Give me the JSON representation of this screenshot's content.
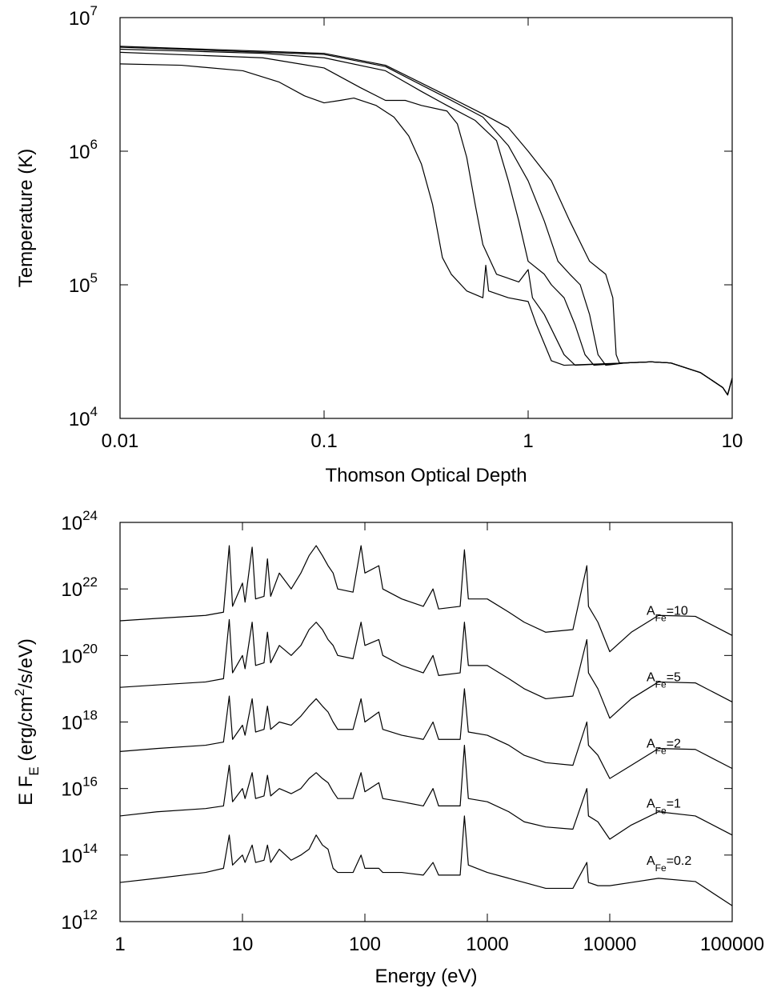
{
  "chart_data": [
    {
      "type": "line",
      "xlabel": "Thomson Optical Depth",
      "ylabel": "Temperature (K)",
      "xlog": true,
      "ylog": true,
      "color": "#000000",
      "xlim": [
        0.01,
        10
      ],
      "ylim": [
        10000,
        10000000
      ],
      "xticks": [
        0.01,
        0.1,
        1,
        10
      ],
      "yticks": [
        {
          "value": 10000,
          "label": "10",
          "exponent": 4
        },
        {
          "value": 100000,
          "label": "10",
          "exponent": 5
        },
        {
          "value": 1000000,
          "label": "10",
          "exponent": 6
        },
        {
          "value": 10000000,
          "label": "10",
          "exponent": 7
        }
      ],
      "series": [
        {
          "x": [
            0.01,
            0.02,
            0.04,
            0.06,
            0.08,
            0.1,
            0.12,
            0.14,
            0.18,
            0.22,
            0.26,
            0.3,
            0.34,
            0.36,
            0.38,
            0.42,
            0.5,
            0.6,
            0.62,
            0.64,
            0.8,
            1.0,
            1.1,
            1.3,
            1.5,
            3,
            4,
            5,
            7,
            9,
            9.5,
            10
          ],
          "values": [
            4500000,
            4400000,
            4000000,
            3300000,
            2600000,
            2300000,
            2400000,
            2500000,
            2200000,
            1800000,
            1300000,
            800000,
            400000,
            250000,
            160000,
            120000,
            90000,
            80000,
            140000,
            90000,
            80000,
            75000,
            50000,
            27000,
            25000,
            26000,
            26500,
            26000,
            22000,
            17000,
            15000,
            20000
          ]
        },
        {
          "x": [
            0.01,
            0.05,
            0.1,
            0.15,
            0.2,
            0.25,
            0.3,
            0.4,
            0.45,
            0.5,
            0.55,
            0.6,
            0.7,
            0.9,
            1.0,
            1.05,
            1.2,
            1.5,
            1.7,
            3,
            4,
            5,
            7,
            9,
            9.5,
            10
          ],
          "values": [
            5500000,
            5000000,
            4200000,
            3000000,
            2400000,
            2400000,
            2200000,
            2000000,
            1600000,
            900000,
            400000,
            200000,
            120000,
            105000,
            130000,
            80000,
            60000,
            30000,
            25000,
            26000,
            26500,
            26000,
            22000,
            17000,
            15000,
            20000
          ]
        },
        {
          "x": [
            0.01,
            0.05,
            0.1,
            0.2,
            0.3,
            0.4,
            0.55,
            0.7,
            0.8,
            0.9,
            1.0,
            1.2,
            1.3,
            1.5,
            1.7,
            1.9,
            2.1,
            3,
            4,
            5,
            7,
            9,
            9.5,
            10
          ],
          "values": [
            5800000,
            5400000,
            5000000,
            4000000,
            2800000,
            2200000,
            1700000,
            1200000,
            600000,
            300000,
            150000,
            120000,
            100000,
            80000,
            50000,
            30000,
            25000,
            26000,
            26500,
            26000,
            22000,
            17000,
            15000,
            20000
          ]
        },
        {
          "x": [
            0.01,
            0.1,
            0.2,
            0.4,
            0.6,
            0.8,
            1.0,
            1.2,
            1.4,
            1.6,
            1.8,
            2.0,
            2.2,
            2.4,
            3,
            4,
            5,
            7,
            9,
            9.5,
            10
          ],
          "values": [
            6000000,
            5300000,
            4300000,
            2500000,
            1800000,
            1100000,
            600000,
            300000,
            150000,
            120000,
            100000,
            60000,
            30000,
            25000,
            26000,
            26500,
            26000,
            22000,
            17000,
            15000,
            20000
          ]
        },
        {
          "x": [
            0.01,
            0.1,
            0.2,
            0.4,
            0.6,
            0.8,
            1.0,
            1.3,
            1.6,
            2,
            2.4,
            2.6,
            2.7,
            2.8,
            4,
            5,
            7,
            9,
            9.5,
            10
          ],
          "values": [
            6100000,
            5400000,
            4400000,
            2600000,
            1900000,
            1500000,
            1000000,
            600000,
            300000,
            150000,
            120000,
            80000,
            30000,
            26000,
            26500,
            26000,
            22000,
            17000,
            15000,
            20000
          ]
        }
      ]
    },
    {
      "type": "line",
      "xlabel": "Energy (eV)",
      "ylabel_parts": [
        {
          "text": "E F"
        },
        {
          "text": "E",
          "shift": "sub"
        },
        {
          "text": " (erg/cm"
        },
        {
          "text": "2",
          "shift": "super"
        },
        {
          "text": "/s/eV)"
        }
      ],
      "xlog": true,
      "ylog": true,
      "color": "#000000",
      "xlim": [
        1,
        100000
      ],
      "ylim": [
        1000000000000.0,
        1e+24
      ],
      "xticks": [
        1,
        10,
        100,
        1000,
        10000,
        100000
      ],
      "yticks": [
        {
          "value": 1000000000000.0,
          "label": "10",
          "exponent": 12
        },
        {
          "value": 100000000000000.0,
          "label": "10",
          "exponent": 14
        },
        {
          "value": 1e+16,
          "label": "10",
          "exponent": 16
        },
        {
          "value": 1e+18,
          "label": "10",
          "exponent": 18
        },
        {
          "value": 1e+20,
          "label": "10",
          "exponent": 20
        },
        {
          "value": 1e+22,
          "label": "10",
          "exponent": 22
        },
        {
          "value": 1e+24,
          "label": "10",
          "exponent": 24
        }
      ],
      "x": [
        1,
        2,
        5,
        7,
        7.8,
        8.3,
        10,
        10.5,
        12,
        12.8,
        15,
        16,
        17,
        20,
        25,
        30,
        35,
        40,
        45,
        50,
        55,
        60,
        80,
        93,
        100,
        130,
        140,
        200,
        300,
        360,
        400,
        600,
        650,
        700,
        1000,
        1500,
        2000,
        3000,
        5000,
        6500,
        6700,
        8000,
        10000,
        15000,
        25000,
        50000,
        100000
      ],
      "series": [
        {
          "label_parts": [
            {
              "text": "A"
            },
            {
              "text": "Fe",
              "shift": "sub"
            },
            {
              "text": "=10"
            }
          ],
          "values": [
            1.1e+21,
            1.3e+21,
            1.6e+21,
            2e+21,
            2e+23,
            3e+21,
            1.5e+22,
            4e+21,
            1.8e+23,
            5e+21,
            6e+21,
            8e+22,
            6e+21,
            3e+22,
            1e+22,
            3e+22,
            1e+23,
            2e+23,
            1e+23,
            5e+22,
            3e+22,
            1e+22,
            8e+21,
            2e+23,
            3e+22,
            5e+22,
            1e+22,
            5e+21,
            3e+21,
            1e+22,
            2.5e+21,
            3e+21,
            1.5e+23,
            5e+21,
            5e+21,
            2e+21,
            1e+21,
            5e+20,
            6e+20,
            5e+22,
            3e+21,
            1e+21,
            1.3e+20,
            5e+20,
            1.6e+21,
            1.5e+21,
            4e+20
          ]
        },
        {
          "label_parts": [
            {
              "text": "A"
            },
            {
              "text": "Fe",
              "shift": "sub"
            },
            {
              "text": "=5"
            }
          ],
          "values": [
            1.1e+19,
            1.3e+19,
            1.6e+19,
            2e+19,
            1.2e+21,
            3e+19,
            1e+20,
            4e+19,
            1e+21,
            5e+19,
            6e+19,
            5e+20,
            6e+19,
            2e+20,
            1e+20,
            2e+20,
            6e+20,
            1e+21,
            6e+20,
            3e+20,
            2e+20,
            1e+20,
            8e+19,
            1e+21,
            2e+20,
            3e+20,
            1e+20,
            5e+19,
            3e+19,
            1e+20,
            2.5e+19,
            3e+19,
            1e+21,
            5e+19,
            5e+19,
            2e+19,
            1e+19,
            5e+18,
            6e+18,
            3e+20,
            3e+19,
            1e+19,
            1.3e+18,
            5e+18,
            1.6e+19,
            1.5e+19,
            4e+18
          ]
        },
        {
          "label_parts": [
            {
              "text": "A"
            },
            {
              "text": "Fe",
              "shift": "sub"
            },
            {
              "text": "=2"
            }
          ],
          "values": [
            1.3e+17,
            1.6e+17,
            2e+17,
            2.5e+17,
            6e+18,
            3e+17,
            8e+17,
            4e+17,
            5e+18,
            5e+17,
            6e+17,
            3e+18,
            6e+17,
            1e+18,
            8e+17,
            1.5e+18,
            3e+18,
            5e+18,
            3e+18,
            2e+18,
            1e+18,
            6e+17,
            6e+17,
            5e+18,
            1e+18,
            2e+18,
            6e+17,
            4e+17,
            3e+17,
            1e+18,
            3e+17,
            3e+17,
            1e+19,
            5e+17,
            4e+17,
            2e+17,
            1e+17,
            6e+16,
            5e+16,
            1e+18,
            2e+17,
            1e+17,
            2e+16,
            5e+16,
            1.6e+17,
            1.5e+17,
            4e+16
          ]
        },
        {
          "label_parts": [
            {
              "text": "A"
            },
            {
              "text": "Fe",
              "shift": "sub"
            },
            {
              "text": "=1"
            }
          ],
          "values": [
            1500000000000000.0,
            2000000000000000.0,
            2500000000000000.0,
            3000000000000000.0,
            5e+16,
            4000000000000000.0,
            1e+16,
            5000000000000000.0,
            3e+16,
            5000000000000000.0,
            6000000000000000.0,
            2.5e+16,
            6000000000000000.0,
            1e+16,
            7000000000000000.0,
            1e+16,
            2e+16,
            3e+16,
            2e+16,
            1.5e+16,
            8000000000000000.0,
            5000000000000000.0,
            5000000000000000.0,
            3e+16,
            8000000000000000.0,
            1.5e+16,
            5000000000000000.0,
            4000000000000000.0,
            3000000000000000.0,
            1e+16,
            3000000000000000.0,
            3000000000000000.0,
            2e+17,
            5000000000000000.0,
            4000000000000000.0,
            2000000000000000.0,
            1000000000000000.0,
            700000000000000.0,
            600000000000000.0,
            1e+16,
            1500000000000000.0,
            1000000000000000.0,
            300000000000000.0,
            800000000000000.0,
            2000000000000000.0,
            1500000000000000.0,
            400000000000000.0
          ]
        },
        {
          "label_parts": [
            {
              "text": "A"
            },
            {
              "text": "Fe",
              "shift": "sub"
            },
            {
              "text": "=0.2"
            }
          ],
          "values": [
            15000000000000.0,
            20000000000000.0,
            30000000000000.0,
            40000000000000.0,
            400000000000000.0,
            50000000000000.0,
            100000000000000.0,
            60000000000000.0,
            200000000000000.0,
            60000000000000.0,
            70000000000000.0,
            200000000000000.0,
            60000000000000.0,
            150000000000000.0,
            70000000000000.0,
            100000000000000.0,
            150000000000000.0,
            400000000000000.0,
            200000000000000.0,
            150000000000000.0,
            40000000000000.0,
            30000000000000.0,
            30000000000000.0,
            100000000000000.0,
            40000000000000.0,
            40000000000000.0,
            30000000000000.0,
            30000000000000.0,
            25000000000000.0,
            60000000000000.0,
            25000000000000.0,
            25000000000000.0,
            1500000000000000.0,
            50000000000000.0,
            30000000000000.0,
            20000000000000.0,
            15000000000000.0,
            10000000000000.0,
            10000000000000.0,
            60000000000000.0,
            15000000000000.0,
            12000000000000.0,
            12000000000000.0,
            15000000000000.0,
            20000000000000.0,
            16000000000000.0,
            3000000000000.0
          ]
        }
      ]
    }
  ]
}
